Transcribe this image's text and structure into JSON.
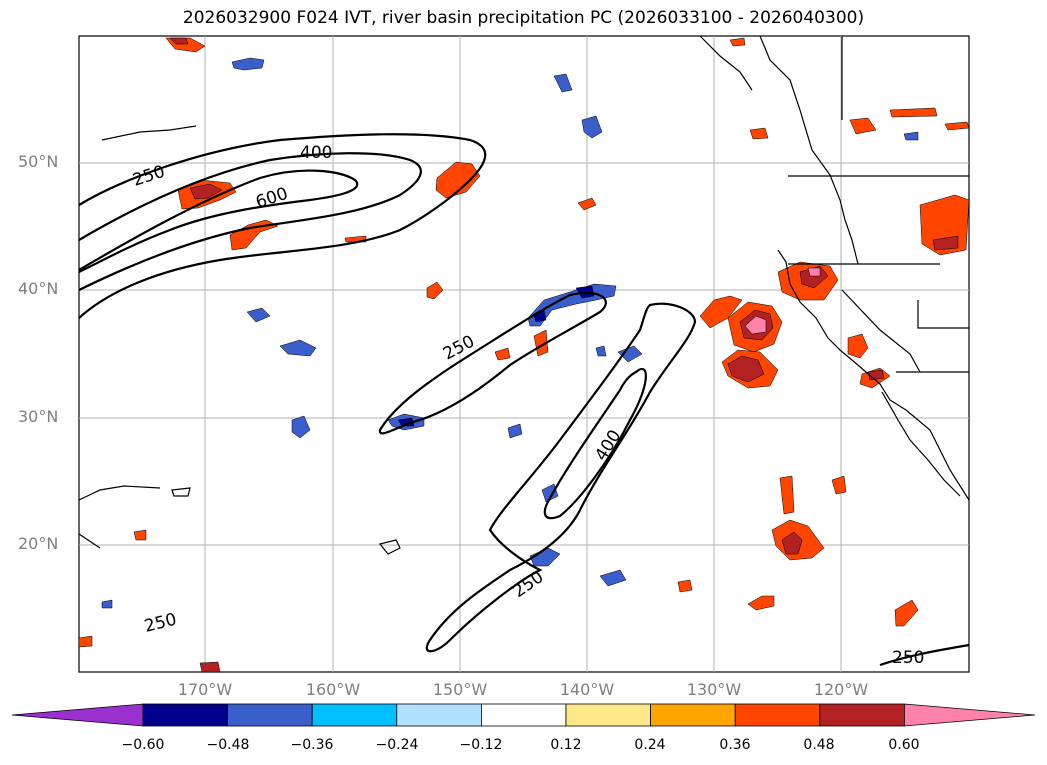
{
  "title": "2026032900 F024 IVT, river basin precipitation PC (2026033100 - 2026040300)",
  "map": {
    "latitude_labels": [
      "50°N",
      "40°N",
      "30°N",
      "20°N"
    ],
    "longitude_labels": [
      "170°W",
      "160°W",
      "150°W",
      "140°W",
      "130°W",
      "120°W"
    ],
    "ivt_contour_levels": [
      250,
      400,
      600
    ],
    "contour_labels": [
      "250",
      "400",
      "600",
      "250",
      "400",
      "250",
      "250",
      "250"
    ]
  },
  "colorbar": {
    "tick_labels": [
      "−0.60",
      "−0.48",
      "−0.36",
      "−0.24",
      "−0.12",
      "0.12",
      "0.24",
      "0.36",
      "0.48",
      "0.60"
    ],
    "colors": [
      "#9b30d0",
      "#00008b",
      "#3a5fcd",
      "#00bfff",
      "#b0e2ff",
      "#ffffff",
      "#ffe88a",
      "#ffa500",
      "#ff4500",
      "#b22222",
      "#ff82ab"
    ]
  }
}
